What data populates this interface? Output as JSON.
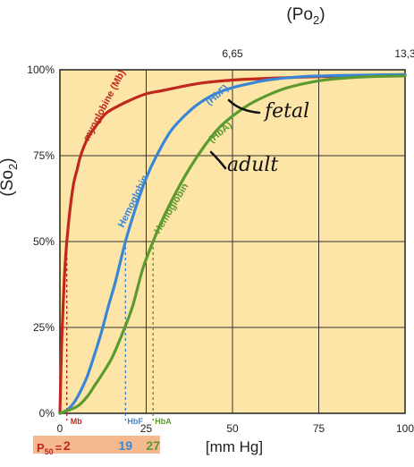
{
  "chart_data": {
    "type": "line",
    "top_axis_title": "(Po",
    "top_axis_title_sub": "2",
    "top_axis_title_close": ")",
    "y_axis_title": "(So",
    "y_axis_title_sub": "2",
    "y_axis_title_close": ")",
    "xlabel": "[mm Hg]",
    "xlim": [
      0,
      100
    ],
    "ylim": [
      0,
      100
    ],
    "x_ticks": [
      {
        "value": 0,
        "label": "0"
      },
      {
        "value": 25,
        "label": "25"
      },
      {
        "value": 50,
        "label": "50"
      },
      {
        "value": 75,
        "label": "75"
      },
      {
        "value": 100,
        "label": "100"
      }
    ],
    "y_ticks": [
      {
        "value": 0,
        "label": "0%"
      },
      {
        "value": 25,
        "label": "25%"
      },
      {
        "value": 50,
        "label": "50%"
      },
      {
        "value": 75,
        "label": "75%"
      },
      {
        "value": 100,
        "label": "100%"
      }
    ],
    "top_ticks": [
      {
        "value": 50,
        "label": "6,65"
      },
      {
        "value": 100,
        "label": "13,3"
      }
    ],
    "grid": true,
    "background_color": "#fce5a6",
    "series": [
      {
        "name": "myoglobine (Mb)",
        "color": "#c0281e",
        "x": [
          0,
          0.5,
          1,
          1.5,
          2,
          3,
          4,
          5,
          6,
          8,
          10,
          13,
          16,
          20,
          25,
          30,
          40,
          50,
          60,
          75,
          100
        ],
        "y": [
          0,
          20,
          33,
          43,
          50,
          60,
          67,
          71,
          75,
          80,
          83,
          87,
          89,
          91,
          93,
          94,
          96,
          97,
          97.5,
          98,
          98.5
        ]
      },
      {
        "name": "Hemoglobin (HbF)",
        "color": "#3a86d6",
        "x": [
          0,
          2,
          4,
          6,
          8,
          10,
          12,
          14,
          16,
          19,
          22,
          25,
          28,
          32,
          36,
          40,
          45,
          50,
          55,
          60,
          70,
          80,
          90,
          100
        ],
        "y": [
          0,
          0.9,
          3,
          6.5,
          11,
          17,
          23.5,
          31,
          38,
          50,
          60,
          68.5,
          75,
          82,
          86.5,
          90,
          93,
          94.8,
          96,
          97,
          98,
          98.3,
          98.5,
          98.6
        ]
      },
      {
        "name": "Hemoglobin (HbA)",
        "color": "#5a9a2e",
        "x": [
          0,
          5,
          8,
          10,
          12,
          15,
          18,
          21,
          24,
          27,
          30,
          34,
          38,
          42,
          46,
          50,
          55,
          60,
          65,
          70,
          75,
          80,
          90,
          100
        ],
        "y": [
          0,
          2,
          5,
          8,
          11,
          16,
          23,
          31,
          42,
          50,
          57,
          65,
          72,
          78,
          83,
          86.5,
          90,
          92.5,
          94.5,
          95.8,
          96.8,
          97.4,
          98,
          98.2
        ]
      }
    ],
    "p50": {
      "label_p": "P",
      "label_sub": "50",
      "label_eq": "=",
      "markers": [
        {
          "id": "Mb",
          "x": 2,
          "tag": "Mb",
          "value": "2",
          "color": "#c0281e"
        },
        {
          "id": "HbF",
          "x": 19,
          "tag": "HbF",
          "value": "19",
          "color": "#3a86d6"
        },
        {
          "id": "HbA",
          "x": 27,
          "tag": "HbA",
          "value": "27",
          "color": "#5a9a2e"
        }
      ],
      "strip_color": "#f4b98e"
    },
    "annotations": [
      {
        "id": "fetal",
        "text": "fetal"
      },
      {
        "id": "adult",
        "text": "adult"
      }
    ]
  }
}
